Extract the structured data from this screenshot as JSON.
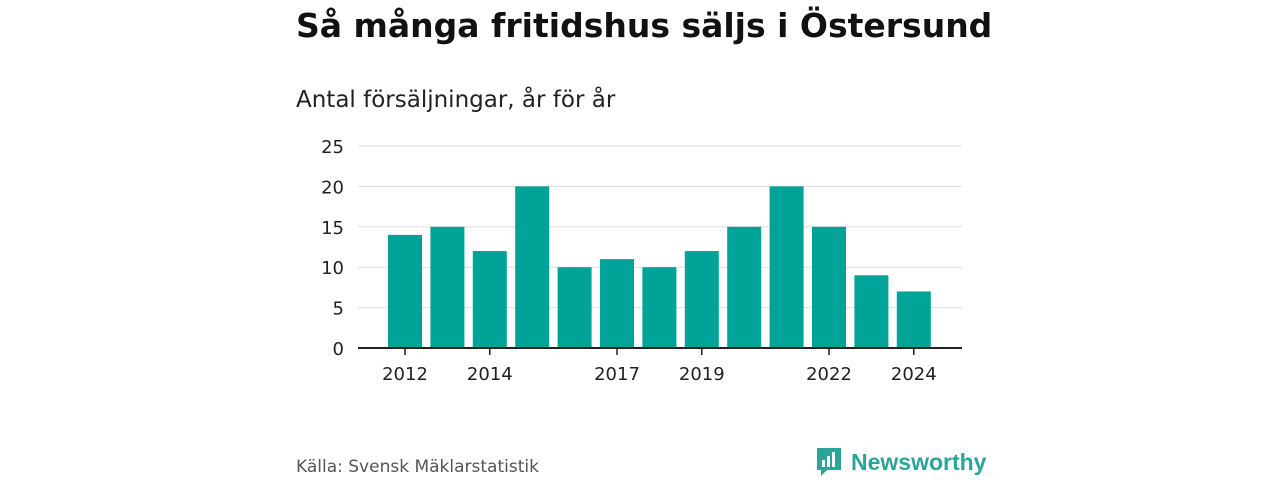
{
  "title": "Så många fritidshus säljs i Östersund",
  "subtitle": "Antal försäljningar, år för år",
  "source": "Källa: Svensk Mäklarstatistik",
  "brand": "Newsworthy",
  "colors": {
    "bar": "#00a398",
    "grid": "#dddddd",
    "axis": "#222222",
    "brand": "#2ba59a"
  },
  "chart_data": {
    "type": "bar",
    "categories": [
      "2012",
      "2013",
      "2014",
      "2015",
      "2016",
      "2017",
      "2018",
      "2019",
      "2020",
      "2021",
      "2022",
      "2023",
      "2024"
    ],
    "values": [
      14,
      15,
      12,
      20,
      10,
      11,
      10,
      12,
      15,
      20,
      15,
      9,
      7
    ],
    "xtick_labels": [
      "2012",
      "2014",
      "2017",
      "2019",
      "2022",
      "2024"
    ],
    "yticks": [
      0,
      5,
      10,
      15,
      20,
      25
    ],
    "ylim": [
      0,
      25
    ],
    "grid": true
  }
}
